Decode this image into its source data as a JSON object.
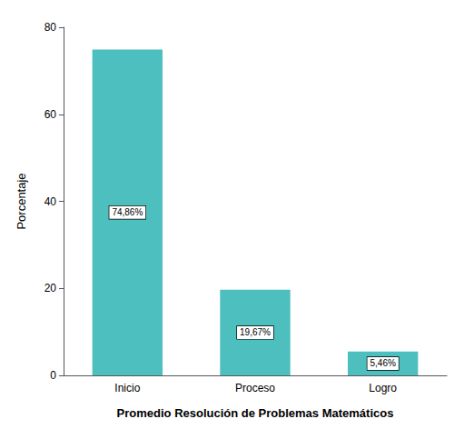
{
  "chart_data": {
    "type": "bar",
    "categories": [
      "Inicio",
      "Proceso",
      "Logro"
    ],
    "values": [
      74.86,
      19.67,
      5.46
    ],
    "value_labels": [
      "74,86%",
      "19,67%",
      "5,46%"
    ],
    "data_labels": true,
    "color": "#4DBFBF",
    "xlabel": "Promedio Resolución de Problemas Matemáticos",
    "ylabel": "Porcentaje",
    "ylim": [
      0,
      80
    ],
    "yticks": [
      0,
      20,
      40,
      60,
      80
    ],
    "grid": false
  }
}
